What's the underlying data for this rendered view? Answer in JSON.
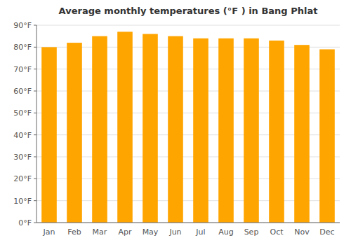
{
  "chart_data": {
    "type": "bar",
    "title": "Average monthly temperatures (°F ) in Bang Phlat",
    "categories": [
      "Jan",
      "Feb",
      "Mar",
      "Apr",
      "May",
      "Jun",
      "Jul",
      "Aug",
      "Sep",
      "Oct",
      "Nov",
      "Dec"
    ],
    "values": [
      80,
      82,
      85,
      87,
      86,
      85,
      84,
      84,
      84,
      83,
      81,
      79
    ],
    "color": "#FFA500",
    "ylim": [
      0,
      90
    ],
    "yticks": [
      {
        "value": 0,
        "label": "0°F"
      },
      {
        "value": 10,
        "label": "10°F"
      },
      {
        "value": 20,
        "label": "20°F"
      },
      {
        "value": 30,
        "label": "30°F"
      },
      {
        "value": 40,
        "label": "40°F"
      },
      {
        "value": 50,
        "label": "50°F"
      },
      {
        "value": 60,
        "label": "60°F"
      },
      {
        "value": 70,
        "label": "70°F"
      },
      {
        "value": 80,
        "label": "80°F"
      },
      {
        "value": 90,
        "label": "90°F"
      }
    ],
    "grid": true
  }
}
